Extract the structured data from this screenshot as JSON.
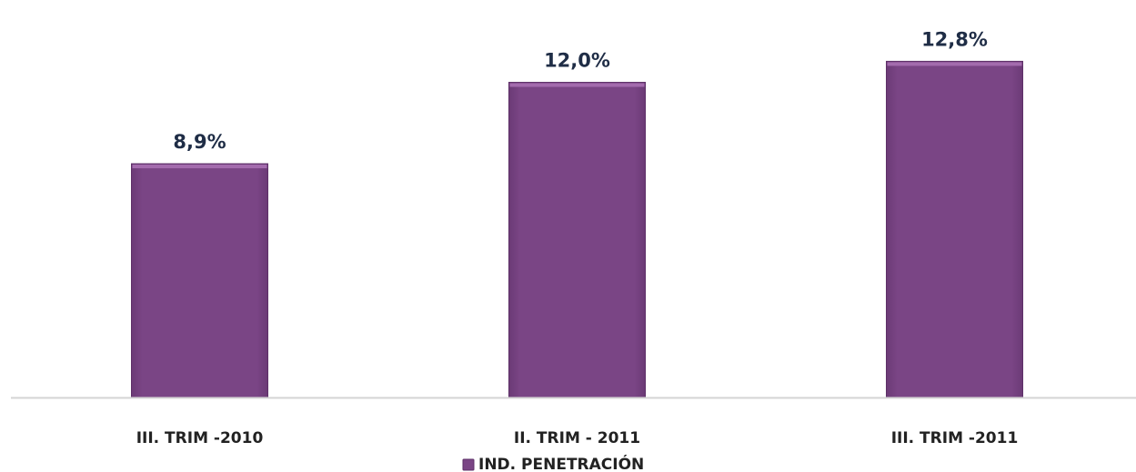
{
  "chart_data": {
    "type": "bar",
    "categories": [
      "III. TRIM -2010",
      "II. TRIM - 2011",
      "III. TRIM -2011"
    ],
    "series": [
      {
        "name": "IND. PENETRACIÓN",
        "values": [
          8.9,
          12.0,
          12.8
        ],
        "labels": [
          "8,9%",
          "12,0%",
          "12,8%"
        ]
      }
    ],
    "value_unit": "%",
    "ylim": [
      0,
      14.2
    ],
    "grid": false,
    "legend": "bottom-center",
    "colors": {
      "bar": "#7a4585",
      "bar_edge": "#5e3068",
      "bar_top": "#a36bad",
      "axis": "#d4d4d4"
    }
  }
}
